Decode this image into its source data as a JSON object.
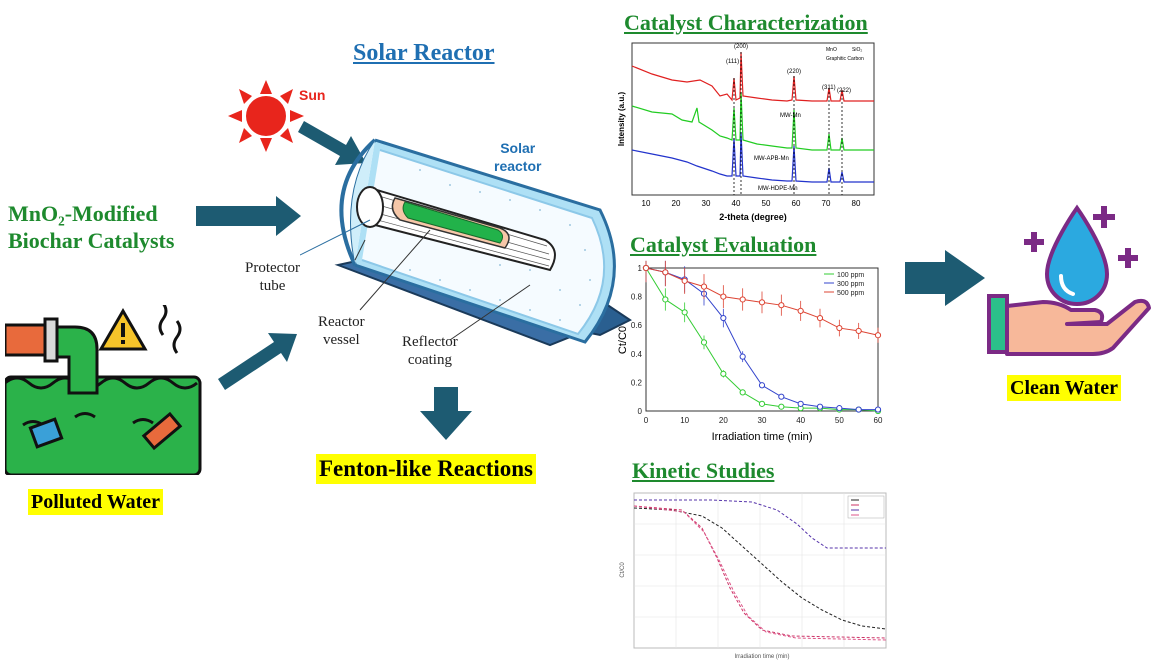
{
  "headings": {
    "solar_reactor": "Solar Reactor",
    "characterization": "Catalyst Characterization",
    "evaluation": "Catalyst Evaluation",
    "kinetic": "Kinetic Studies"
  },
  "left": {
    "catalyst_line1": "MnO₂-Modified",
    "catalyst_line2": "Biochar Catalysts",
    "polluted": "Polluted Water"
  },
  "reactor": {
    "sun": "Sun",
    "solar_reactor_line1": "Solar",
    "solar_reactor_line2": "reactor",
    "protector_line1": "Protector",
    "protector_line2": "tube",
    "vessel_line1": "Reactor",
    "vessel_line2": "vessel",
    "reflector_line1": "Reflector",
    "reflector_line2": "coating",
    "fenton": "Fenton-like Reactions"
  },
  "right": {
    "clean": "Clean Water"
  },
  "colors": {
    "arrow": "#1d5b72",
    "heading_green": "#1e8a2e",
    "heading_blue": "#1f6fb2",
    "highlight": "#ffff00"
  },
  "chart_data": [
    {
      "type": "line",
      "title": "Catalyst Characterization",
      "xlabel": "2-theta (degree)",
      "ylabel": "Intensity (a.u.)",
      "xlim": [
        5,
        85
      ],
      "x_ticks": [
        10,
        20,
        30,
        40,
        50,
        60,
        70,
        80
      ],
      "legend": [
        "MnO",
        "SiO₂",
        "Graphitic Carbon"
      ],
      "peak_labels": [
        {
          "hkl": "(111)",
          "x": 35
        },
        {
          "hkl": "(200)",
          "x": 40.6
        },
        {
          "hkl": "(220)",
          "x": 58.7
        },
        {
          "hkl": "(311)",
          "x": 70.2
        },
        {
          "hkl": "(222)",
          "x": 73.9
        }
      ],
      "series": [
        {
          "name": "MW-Mn",
          "color": "#e02020"
        },
        {
          "name": "MW-APB-Mn",
          "color": "#22cc22"
        },
        {
          "name": "MW-HDPE-Mn",
          "color": "#2233cc"
        }
      ]
    },
    {
      "type": "line",
      "title": "Catalyst Evaluation",
      "xlabel": "Irradiation time (min)",
      "ylabel": "Ct/C0",
      "xlim": [
        0,
        60
      ],
      "ylim": [
        0,
        1.0
      ],
      "x_ticks": [
        0,
        10,
        20,
        30,
        40,
        50,
        60
      ],
      "y_ticks": [
        0,
        0.2,
        0.4,
        0.6,
        0.8,
        1.0
      ],
      "legend_position": "top-right",
      "x": [
        0,
        5,
        10,
        15,
        20,
        25,
        30,
        35,
        40,
        45,
        50,
        55,
        60
      ],
      "series": [
        {
          "name": "100 ppm",
          "color": "#33cc33",
          "values": [
            1.0,
            0.78,
            0.69,
            0.48,
            0.26,
            0.13,
            0.05,
            0.03,
            0.02,
            0.02,
            0.01,
            0.01,
            0.0
          ]
        },
        {
          "name": "300 ppm",
          "color": "#3344cc",
          "values": [
            1.0,
            0.97,
            0.92,
            0.82,
            0.65,
            0.38,
            0.18,
            0.1,
            0.05,
            0.03,
            0.02,
            0.01,
            0.01
          ]
        },
        {
          "name": "500 ppm",
          "color": "#dd4433",
          "values": [
            1.0,
            0.97,
            0.91,
            0.87,
            0.8,
            0.78,
            0.76,
            0.74,
            0.7,
            0.65,
            0.58,
            0.56,
            0.53
          ]
        }
      ]
    },
    {
      "type": "line",
      "title": "Kinetic Studies",
      "xlabel": "Irradiation time (min)",
      "ylabel": "Ct/C0",
      "legend_position": "top-right",
      "series": [
        {
          "color": "#222222"
        },
        {
          "color": "#cc3366"
        },
        {
          "color": "#5533aa"
        },
        {
          "color": "#dd5588"
        }
      ]
    }
  ]
}
